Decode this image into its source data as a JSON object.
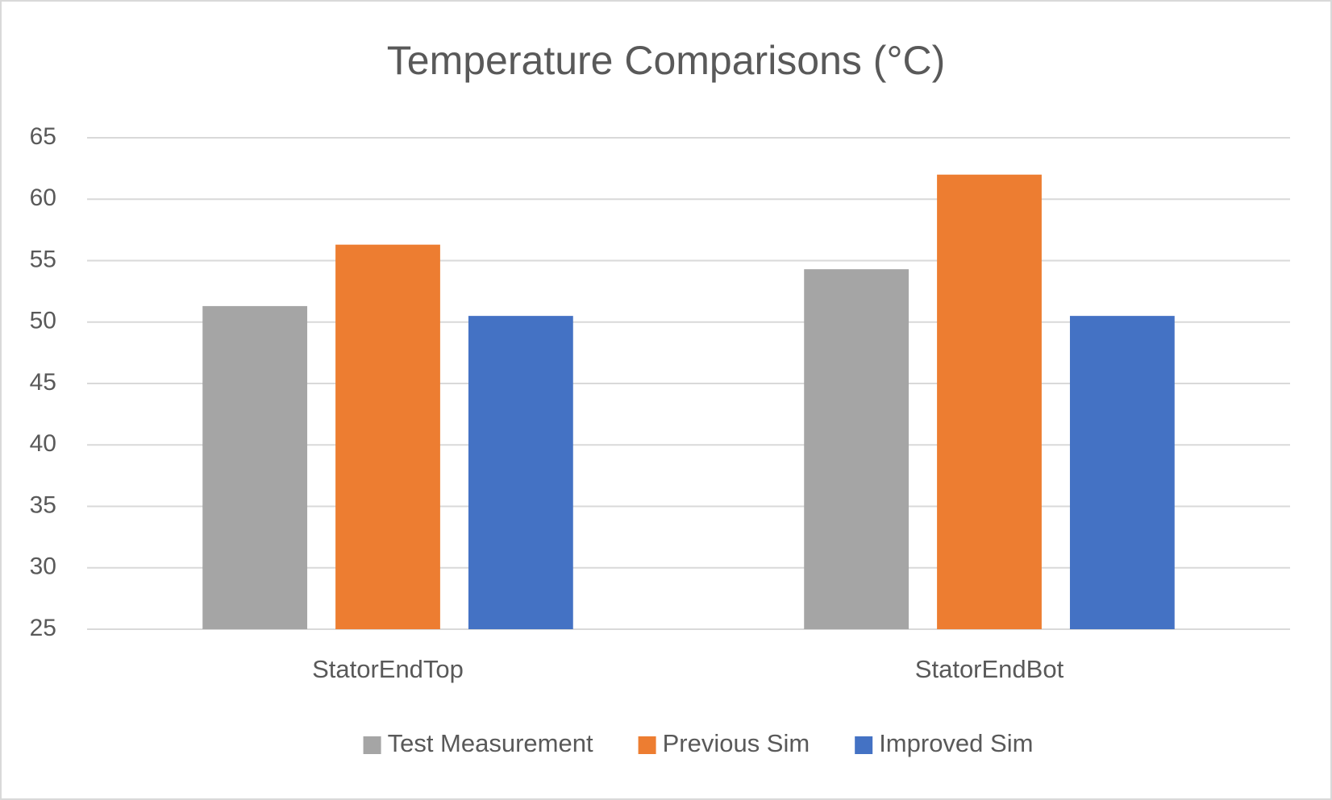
{
  "chart_data": {
    "type": "bar",
    "title": "Temperature Comparisons (°C)",
    "categories": [
      "StatorEndTop",
      "StatorEndBot"
    ],
    "series": [
      {
        "name": "Test Measurement",
        "color": "#a5a5a5",
        "values": [
          51.3,
          54.3
        ]
      },
      {
        "name": "Previous Sim",
        "color": "#ed7d31",
        "values": [
          56.3,
          62.0
        ]
      },
      {
        "name": "Improved Sim",
        "color": "#4472c4",
        "values": [
          50.5,
          50.5
        ]
      }
    ],
    "ylim": [
      25,
      65
    ],
    "yticks": [
      25,
      30,
      35,
      40,
      45,
      50,
      55,
      60,
      65
    ],
    "grid": true,
    "legend": "bottom"
  }
}
